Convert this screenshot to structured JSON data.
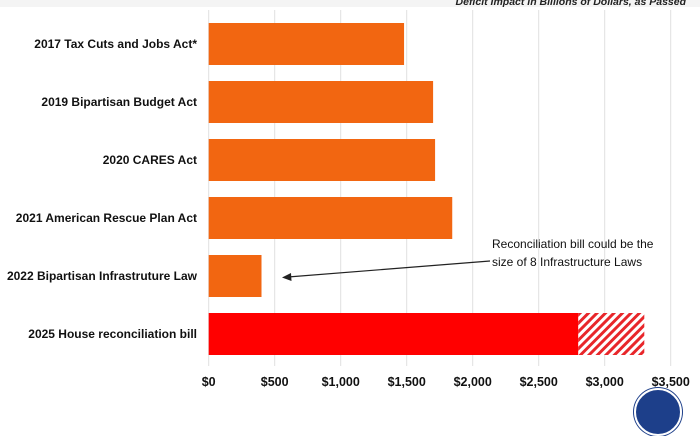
{
  "chart_data": {
    "type": "bar",
    "orientation": "horizontal",
    "title": "",
    "subtitle": "Deficit Impact in Billions of Dollars, as Passed",
    "xlabel": "",
    "ylabel": "",
    "xlim": [
      0,
      3500
    ],
    "x_ticks": [
      0,
      500,
      1000,
      1500,
      2000,
      2500,
      3000,
      3500
    ],
    "x_tick_labels": [
      "$0",
      "$500",
      "$1,000",
      "$1,500",
      "$2,000",
      "$2,500",
      "$3,000",
      "$3,500"
    ],
    "grid": "vertical",
    "categories": [
      "2017 Tax Cuts and Jobs Act*",
      "2019 Bipartisan Budget Act",
      "2020 CARES Act",
      "2021 American Rescue Plan Act",
      "2022 Bipartisan Infrastruture Law",
      "2025 House reconciliation bill"
    ],
    "values": [
      1480,
      1700,
      1715,
      1845,
      400,
      2800
    ],
    "hatched_extension": {
      "category": "2025 House reconciliation bill",
      "from": 2800,
      "to": 3300
    },
    "colors": {
      "bar": "#f26611",
      "highlight": "#ff0000",
      "hatch": "#e8262a",
      "grid": "#e0e0e0"
    },
    "annotation": {
      "lines": [
        "Reconciliation bill could be the",
        "size of 8 Infrastructure Laws"
      ],
      "points_to": "2022 Bipartisan Infrastruture Law"
    }
  },
  "logo": {
    "color": "#1d3f8a"
  }
}
